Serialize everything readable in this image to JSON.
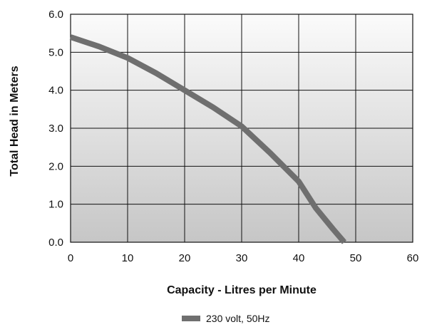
{
  "chart_data": {
    "type": "line",
    "title": "",
    "xlabel": "Capacity - Litres per Minute",
    "ylabel": "Total Head in Meters",
    "xlim": [
      0,
      60
    ],
    "ylim": [
      0,
      6
    ],
    "x_ticks": [
      "0",
      "10",
      "20",
      "30",
      "40",
      "50",
      "60"
    ],
    "y_ticks": [
      "0.0",
      "1.0",
      "2.0",
      "3.0",
      "4.0",
      "5.0",
      "6.0"
    ],
    "grid": true,
    "legend_position": "bottom-center",
    "series": [
      {
        "name": "230 volt, 50Hz",
        "color": "#6f6f6f",
        "points": [
          [
            0,
            5.4
          ],
          [
            5,
            5.15
          ],
          [
            10,
            4.85
          ],
          [
            15,
            4.45
          ],
          [
            20,
            4.0
          ],
          [
            25,
            3.55
          ],
          [
            30,
            3.05
          ],
          [
            35,
            2.35
          ],
          [
            40,
            1.6
          ],
          [
            43,
            0.9
          ],
          [
            46,
            0.35
          ],
          [
            48,
            0.0
          ]
        ]
      }
    ]
  }
}
